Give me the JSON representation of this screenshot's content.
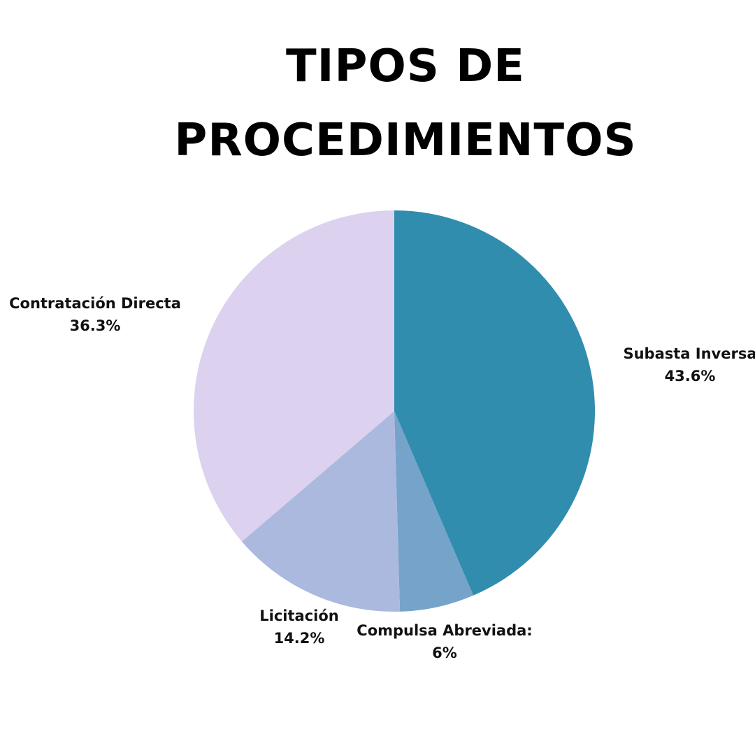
{
  "title_lines": [
    "TIPOS DE",
    "PROCEDIMIENTOS"
  ],
  "chart_data": {
    "type": "pie",
    "title": "TIPOS DE PROCEDIMIENTOS",
    "slices": [
      {
        "name": "Subasta Inversa",
        "label": "Subasta Inversa",
        "value": 43.6,
        "value_label": "43.6%",
        "color": "#308dae"
      },
      {
        "name": "Compulsa Abreviada",
        "label": "Compulsa Abreviada:",
        "value": 6.0,
        "value_label": "6%",
        "color": "#76a3c9"
      },
      {
        "name": "Licitación",
        "label": "Licitación",
        "value": 14.2,
        "value_label": "14.2%",
        "color": "#acb9de"
      },
      {
        "name": "Contratación Directa",
        "label": "Contratación Directa",
        "value": 36.3,
        "value_label": "36.3%",
        "color": "#dcd2ef"
      }
    ],
    "start_angle": "12 o'clock",
    "direction": "clockwise",
    "legend": "none"
  }
}
